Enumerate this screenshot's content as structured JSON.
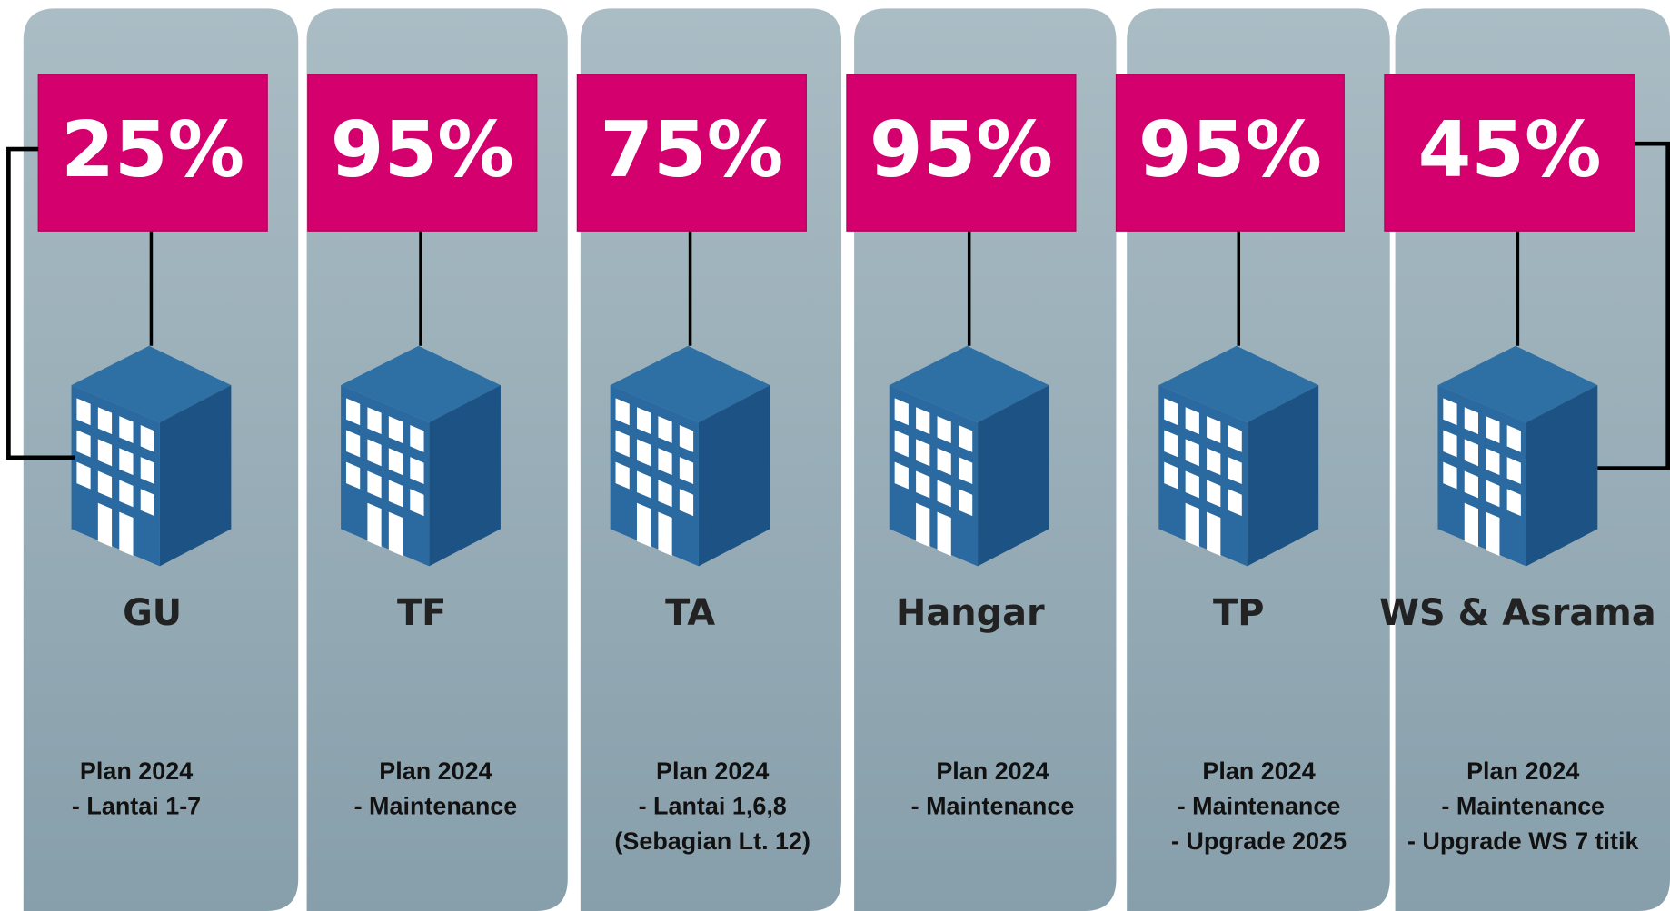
{
  "buildings": [
    {
      "percent": "25%",
      "name": "GU",
      "plan": [
        "Plan 2024",
        "- Lantai 1-7"
      ]
    },
    {
      "percent": "95%",
      "name": "TF",
      "plan": [
        "Plan 2024",
        "- Maintenance"
      ]
    },
    {
      "percent": "75%",
      "name": "TA",
      "plan": [
        "Plan 2024",
        "- Lantai 1,6,8",
        "(Sebagian Lt. 12)"
      ]
    },
    {
      "percent": "95%",
      "name": "Hangar",
      "plan": [
        "Plan 2024",
        "- Maintenance"
      ]
    },
    {
      "percent": "95%",
      "name": "TP",
      "plan": [
        "Plan 2024",
        "- Maintenance",
        "- Upgrade 2025"
      ]
    },
    {
      "percent": "45%",
      "name": "WS & Asrama",
      "plan": [
        "Plan 2024",
        "- Maintenance",
        "- Upgrade WS 7 titik"
      ]
    }
  ]
}
